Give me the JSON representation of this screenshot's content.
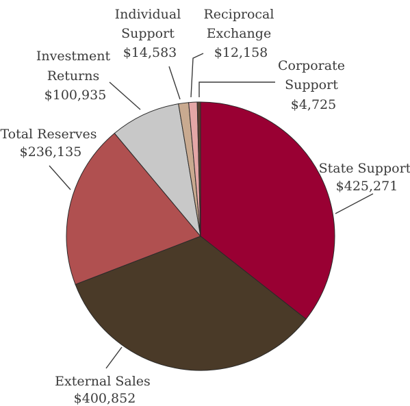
{
  "chart_data": {
    "type": "pie",
    "title": "",
    "slices": [
      {
        "label": "State Support",
        "value_text": "$425,271",
        "value": 425271,
        "color": "#990033"
      },
      {
        "label": "External Sales",
        "value_text": "$400,852",
        "value": 400852,
        "color": "#4a3a28"
      },
      {
        "label": "Total Reserves",
        "value_text": "$236,135",
        "value": 236135,
        "color": "#b05050"
      },
      {
        "label": "Investment Returns",
        "value_text": "$100,935",
        "value": 100935,
        "color": "#c8c8c8"
      },
      {
        "label": "Individual Support",
        "value_text": "$14,583",
        "value": 14583,
        "color": "#c9aa90"
      },
      {
        "label": "Reciprocal Exchange",
        "value_text": "$12,158",
        "value": 12158,
        "color": "#e4a6a6"
      },
      {
        "label": "Corporate Support",
        "value_text": "$4,725",
        "value": 4725,
        "color": "#5a4030"
      }
    ],
    "labels": {
      "state_support": [
        "State Support",
        "$425,271"
      ],
      "external_sales": [
        "External Sales",
        "$400,852"
      ],
      "total_reserves": [
        "Total Reserves",
        "$236,135"
      ],
      "investment_returns": [
        "Investment",
        "Returns",
        "$100,935"
      ],
      "individual_support": [
        "Individual",
        "Support",
        "$14,583"
      ],
      "reciprocal_exchange": [
        "Reciprocal",
        "Exchange",
        "$12,158"
      ],
      "corporate_support": [
        "Corporate",
        "Support",
        "$4,725"
      ]
    }
  }
}
